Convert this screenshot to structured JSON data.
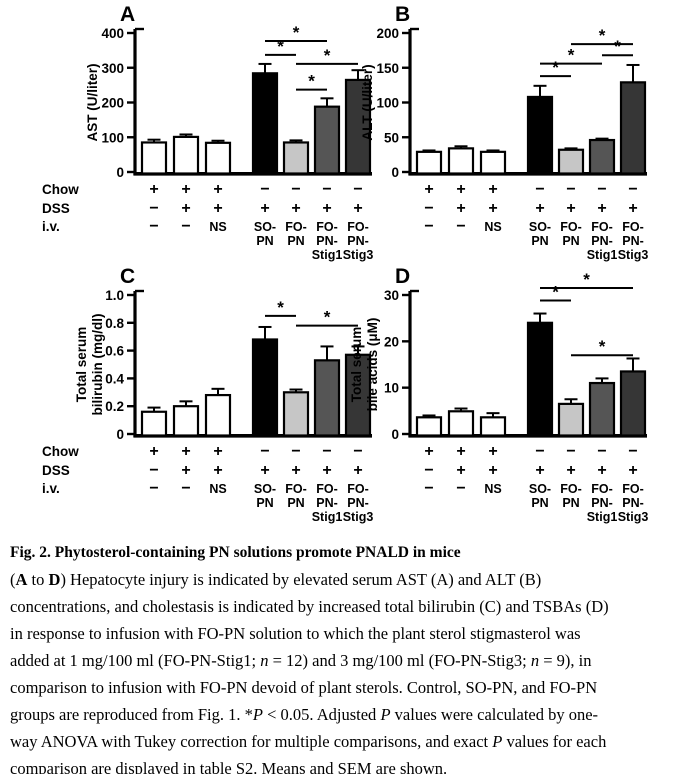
{
  "page": {
    "background": "#ffffff"
  },
  "colors": {
    "white": "#ffffff",
    "black": "#000000",
    "lightgray": "#c6c6c6",
    "midgray": "#555555",
    "darkgray": "#363636",
    "axis": "#000000"
  },
  "group_rows": {
    "row_labels": [
      "Chow",
      "DSS",
      "i.v."
    ],
    "chow": [
      "+",
      "+",
      "+",
      "−",
      "−",
      "−",
      "−"
    ],
    "dss": [
      "−",
      "+",
      "+",
      "+",
      "+",
      "+",
      "+"
    ],
    "iv": [
      [
        "−"
      ],
      [
        "−"
      ],
      [
        "NS"
      ],
      [
        "SO-",
        "PN"
      ],
      [
        "FO-",
        "PN"
      ],
      [
        "FO-",
        "PN-",
        "Stig1"
      ],
      [
        "FO-",
        "PN-",
        "Stig3"
      ]
    ]
  },
  "chart_data": [
    {
      "type": "bar",
      "panel": "A",
      "ylabel_lines": [
        "AST (U/liter)"
      ],
      "ylim": [
        0,
        400
      ],
      "yticks": [
        0,
        100,
        200,
        300,
        400
      ],
      "ytick_labels": [
        "0",
        "100",
        "200",
        "300",
        "400"
      ],
      "grid": false,
      "values": [
        85,
        101,
        84,
        284,
        85,
        188,
        265
      ],
      "errors": [
        8,
        7,
        6,
        27,
        6,
        24,
        28
      ],
      "bar_colors": [
        "white",
        "white",
        "white",
        "black",
        "lightgray",
        "midgray",
        "darkgray"
      ],
      "significance": [
        {
          "from": 3,
          "to": 5,
          "y": 377,
          "label": "*"
        },
        {
          "from": 3,
          "to": 4,
          "y": 337,
          "label": "*"
        },
        {
          "from": 4,
          "to": 6,
          "y": 311,
          "label": "*"
        },
        {
          "from": 4,
          "to": 5,
          "y": 237,
          "label": "*"
        }
      ],
      "show_row_labels": true
    },
    {
      "type": "bar",
      "panel": "B",
      "ylabel_lines": [
        "ALT (U/liter)"
      ],
      "ylim": [
        0,
        200
      ],
      "yticks": [
        0,
        50,
        100,
        150,
        200
      ],
      "ytick_labels": [
        "0",
        "50",
        "100",
        "150",
        "200"
      ],
      "grid": false,
      "values": [
        29,
        34,
        29,
        108,
        32,
        46,
        129
      ],
      "errors": [
        2,
        3,
        2,
        16,
        2,
        2,
        25
      ],
      "bar_colors": [
        "white",
        "white",
        "white",
        "black",
        "lightgray",
        "midgray",
        "darkgray"
      ],
      "significance": [
        {
          "from": 4,
          "to": 6,
          "y": 184,
          "label": "*"
        },
        {
          "from": 5,
          "to": 6,
          "y": 168,
          "label": "*"
        },
        {
          "from": 3,
          "to": 5,
          "y": 156,
          "label": "*"
        },
        {
          "from": 3,
          "to": 4,
          "y": 138,
          "label": "*"
        }
      ],
      "show_row_labels": false
    },
    {
      "type": "bar",
      "panel": "C",
      "ylabel_lines": [
        "Total serum",
        "bilirubin (mg/dl)"
      ],
      "ylim": [
        0,
        1.0
      ],
      "yticks": [
        0,
        0.2,
        0.4,
        0.6,
        0.8,
        1.0
      ],
      "ytick_labels": [
        "0",
        "0.2",
        "0.4",
        "0.6",
        "0.8",
        "1.0"
      ],
      "grid": false,
      "values": [
        0.16,
        0.2,
        0.28,
        0.68,
        0.3,
        0.53,
        0.57
      ],
      "errors": [
        0.03,
        0.035,
        0.045,
        0.09,
        0.02,
        0.1,
        0.06
      ],
      "bar_colors": [
        "white",
        "white",
        "white",
        "black",
        "lightgray",
        "midgray",
        "darkgray"
      ],
      "significance": [
        {
          "from": 3,
          "to": 4,
          "y": 0.85,
          "label": "*"
        },
        {
          "from": 4,
          "to": 6,
          "y": 0.78,
          "label": "*"
        }
      ],
      "show_row_labels": true
    },
    {
      "type": "bar",
      "panel": "D",
      "ylabel_lines": [
        "Total serum",
        "bile acids (μM)"
      ],
      "ylim": [
        0,
        30
      ],
      "yticks": [
        0,
        10,
        20,
        30
      ],
      "ytick_labels": [
        "0",
        "10",
        "20",
        "30"
      ],
      "grid": false,
      "values": [
        3.6,
        4.9,
        3.6,
        24,
        6.5,
        11,
        13.5
      ],
      "errors": [
        0.4,
        0.6,
        0.9,
        2,
        1,
        1,
        2.8
      ],
      "bar_colors": [
        "white",
        "white",
        "white",
        "black",
        "lightgray",
        "midgray",
        "darkgray"
      ],
      "significance": [
        {
          "from": 3,
          "to": 6,
          "y": 31.5,
          "label": "*"
        },
        {
          "from": 3,
          "to": 4,
          "y": 28.8,
          "label": "*"
        },
        {
          "from": 4,
          "to": 6,
          "y": 17,
          "label": "*"
        }
      ],
      "show_row_labels": false
    }
  ],
  "caption": {
    "title": "Fig. 2. Phytosterol-containing PN solutions promote PNALD in mice",
    "body_lines": [
      [
        {
          "t": "("
        },
        {
          "t": "A",
          "b": true
        },
        {
          "t": " to "
        },
        {
          "t": "D",
          "b": true
        },
        {
          "t": ") Hepatocyte injury is indicated by elevated serum AST (A) and ALT (B)"
        }
      ],
      [
        {
          "t": "concentrations, and cholestasis is indicated by increased total bilirubin (C) and TSBAs (D)"
        }
      ],
      [
        {
          "t": "in response to infusion with FO-PN solution to which the plant sterol stigmasterol was"
        }
      ],
      [
        {
          "t": "added at 1 mg/100 ml (FO-PN-Stig1; "
        },
        {
          "t": "n",
          "i": true
        },
        {
          "t": " = 12) and 3 mg/100 ml (FO-PN-Stig3; "
        },
        {
          "t": "n",
          "i": true
        },
        {
          "t": " = 9), in"
        }
      ],
      [
        {
          "t": "comparison to infusion with FO-PN devoid of plant sterols. Control, SO-PN, and FO-PN"
        }
      ],
      [
        {
          "t": "groups are reproduced from Fig. 1. *"
        },
        {
          "t": "P",
          "i": true
        },
        {
          "t": " < 0.05. Adjusted "
        },
        {
          "t": "P",
          "i": true
        },
        {
          "t": " values were calculated by one-"
        }
      ],
      [
        {
          "t": "way ANOVA with Tukey correction for multiple comparisons, and exact "
        },
        {
          "t": "P",
          "i": true
        },
        {
          "t": " values for each"
        }
      ],
      [
        {
          "t": "comparison are displayed in table S2. Means and SEM are shown."
        }
      ]
    ]
  }
}
